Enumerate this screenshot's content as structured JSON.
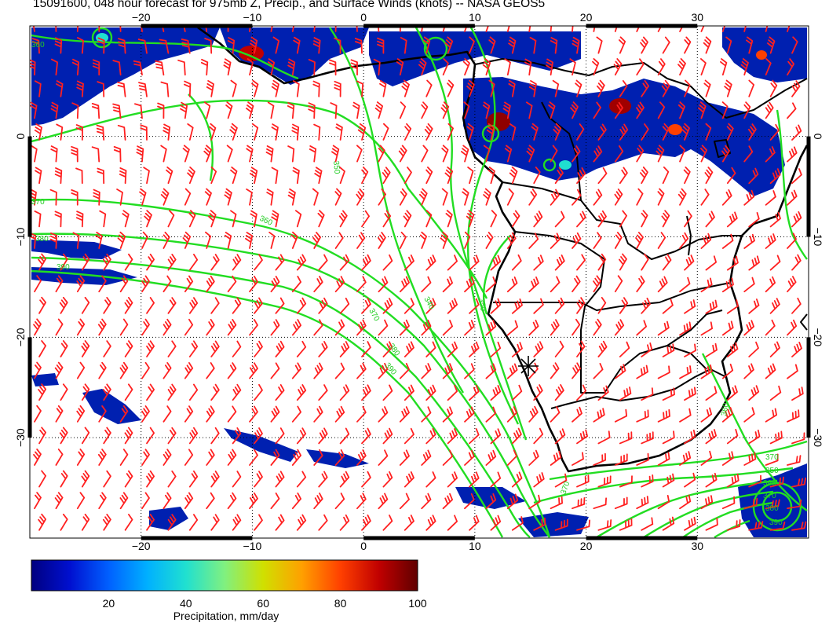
{
  "title": "15091600, 048 hour forecast for 975mb Z, Precip., and Surface Winds (knots) -- NASA GEOS5",
  "map": {
    "lon_range": [
      -30,
      40
    ],
    "lat_range": [
      -40,
      11
    ],
    "lon_ticks": [
      -20,
      -10,
      0,
      10,
      20,
      30
    ],
    "lat_ticks": [
      0,
      -10,
      -20,
      -30
    ],
    "lon_tick_labels": [
      "−20",
      "−10",
      "0",
      "10",
      "20",
      "30"
    ],
    "lat_tick_labels": [
      "0",
      "−10",
      "−20",
      "−30"
    ],
    "grid": "dotted",
    "colors": {
      "wind_barbs": "#ff2020",
      "contours": "#22dd22",
      "coastlines": "#000000"
    },
    "contour_labels": [
      "360",
      "370",
      "380",
      "390",
      "360",
      "370",
      "380",
      "390",
      "340",
      "370",
      "350",
      "350",
      "360",
      "370",
      "350",
      "360",
      "370",
      "380",
      "390"
    ],
    "marker": "storm-center-star"
  },
  "colorbar": {
    "ticks": [
      20,
      40,
      60,
      80,
      100
    ],
    "label": "Precipitation, mm/day",
    "colors": [
      "#000080",
      "#0010d0",
      "#0060ff",
      "#00b0ff",
      "#20e0d0",
      "#80f080",
      "#d0e000",
      "#ffa000",
      "#ff4000",
      "#c00000",
      "#600000"
    ]
  }
}
